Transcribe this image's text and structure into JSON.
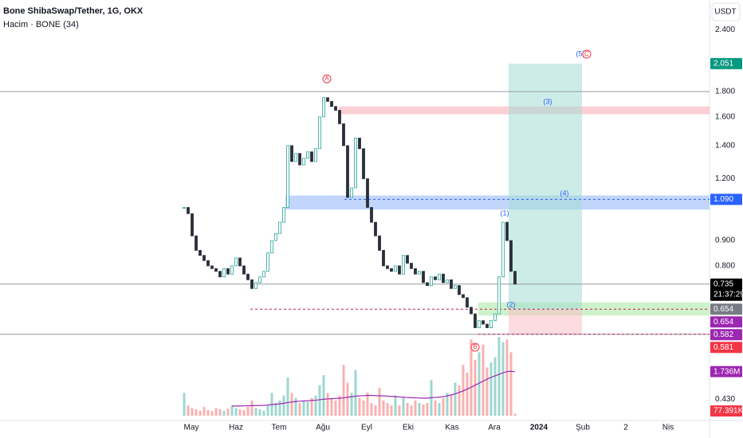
{
  "header": {
    "title": "Bone ShibaSwap/Tether, 1G, OKX",
    "indicator": "Hacim · BONE (34)",
    "currency": "USDT"
  },
  "chart_data": {
    "type": "candlestick",
    "log_scale": true,
    "ylim": [
      0.394,
      2.56
    ],
    "yticks": [
      {
        "value": 2.4,
        "label": "2.400"
      },
      {
        "value": 1.8,
        "label": "1.800"
      },
      {
        "value": 1.6,
        "label": "1.600"
      },
      {
        "value": 1.4,
        "label": "1.400"
      },
      {
        "value": 1.2,
        "label": "1.200"
      },
      {
        "value": 0.9,
        "label": "0.900"
      },
      {
        "value": 0.8,
        "label": "0.800"
      },
      {
        "value": 0.43,
        "label": "0.430"
      }
    ],
    "x_labels": [
      "May",
      "Haz",
      "Tem",
      "Ağu",
      "Eyl",
      "Eki",
      "Kas",
      "Ara",
      "2024",
      "Şub",
      "2",
      "Nis"
    ],
    "up_color": "#26a69a",
    "down_color": "#2a2e39",
    "values": [
      1.05,
      1.02,
      0.92,
      0.86,
      0.84,
      0.82,
      0.8,
      0.79,
      0.78,
      0.76,
      0.79,
      0.77,
      0.8,
      0.83,
      0.8,
      0.77,
      0.75,
      0.72,
      0.74,
      0.76,
      0.78,
      0.85,
      0.9,
      0.93,
      0.98,
      1.05,
      1.4,
      1.3,
      1.35,
      1.28,
      1.32,
      1.36,
      1.3,
      1.38,
      1.6,
      1.75,
      1.72,
      1.68,
      1.65,
      1.55,
      1.4,
      1.1,
      1.15,
      1.45,
      1.38,
      1.2,
      1.05,
      0.98,
      0.92,
      0.86,
      0.8,
      0.79,
      0.78,
      0.8,
      0.77,
      0.84,
      0.81,
      0.79,
      0.77,
      0.78,
      0.74,
      0.73,
      0.76,
      0.75,
      0.77,
      0.74,
      0.75,
      0.72,
      0.73,
      0.7,
      0.69,
      0.66,
      0.64,
      0.6,
      0.62,
      0.61,
      0.6,
      0.62,
      0.64,
      0.76,
      0.98,
      0.9,
      0.78,
      0.735
    ],
    "vlim": [
      0,
      3200000
    ],
    "volume": [
      900000,
      400000,
      300000,
      250000,
      200000,
      350000,
      220000,
      180000,
      300000,
      250000,
      200000,
      280000,
      400000,
      300000,
      250000,
      220000,
      350000,
      600000,
      300000,
      250000,
      200000,
      400000,
      900000,
      500000,
      600000,
      800000,
      1500000,
      900000,
      700000,
      500000,
      600000,
      550000,
      700000,
      800000,
      1200000,
      1600000,
      900000,
      700000,
      600000,
      800000,
      2000000,
      1300000,
      900000,
      1800000,
      700000,
      600000,
      900000,
      500000,
      400000,
      1100000,
      600000,
      500000,
      400000,
      800000,
      400000,
      700000,
      500000,
      400000,
      600000,
      500000,
      450000,
      500000,
      1400000,
      600000,
      500000,
      700000,
      900000,
      800000,
      1300000,
      1200000,
      2000000,
      1700000,
      3000000,
      2200000,
      2500000,
      2800000,
      1900000,
      2100000,
      2300000,
      3100000,
      2900000,
      3000000,
      2500000,
      77391
    ],
    "volume_ma": [
      null,
      null,
      null,
      null,
      null,
      null,
      null,
      null,
      null,
      null,
      null,
      null,
      380000,
      380000,
      380000,
      390000,
      390000,
      400000,
      400000,
      400000,
      410000,
      420000,
      440000,
      450000,
      470000,
      490000,
      520000,
      540000,
      560000,
      570000,
      580000,
      590000,
      600000,
      610000,
      630000,
      650000,
      660000,
      670000,
      680000,
      690000,
      700000,
      730000,
      750000,
      770000,
      780000,
      790000,
      800000,
      800000,
      790000,
      780000,
      780000,
      770000,
      760000,
      750000,
      740000,
      730000,
      720000,
      710000,
      700000,
      700000,
      690000,
      690000,
      710000,
      720000,
      730000,
      750000,
      780000,
      820000,
      860000,
      920000,
      980000,
      1050000,
      1120000,
      1200000,
      1280000,
      1360000,
      1440000,
      1510000,
      1570000,
      1630000,
      1690000,
      1740000,
      1750000,
      1736000
    ],
    "zones": [
      {
        "low": 1.62,
        "high": 1.68,
        "color": "#f7a9b0"
      },
      {
        "low": 1.04,
        "high": 1.11,
        "color": "#90b4f9"
      },
      {
        "low": 0.635,
        "high": 0.675,
        "color": "#a6e8a0"
      },
      {
        "low": 0.654,
        "high": 2.051,
        "color": "#a4ddd3"
      },
      {
        "low": 0.582,
        "high": 0.654,
        "color": "#f9c0c6"
      }
    ],
    "lines": [
      {
        "value": 1.8,
        "color": "#9598a1",
        "dash": false
      },
      {
        "value": 0.735,
        "color": "#9598a1",
        "dash": false
      },
      {
        "value": 0.582,
        "color": "#9598a1",
        "dash": false
      },
      {
        "value": 1.09,
        "color": "#2962ff",
        "dash": true
      },
      {
        "value": 0.654,
        "color": "#c2185b",
        "dash": true
      }
    ],
    "price_tags": [
      {
        "value": 2.051,
        "label": "2.051",
        "color": "#089981"
      },
      {
        "value": 1.09,
        "label": "1.090",
        "color": "#2962ff"
      },
      {
        "value": 0.735,
        "label": "0.735",
        "color": "#000000",
        "countdown": "21:37:29"
      },
      {
        "value": 0.654,
        "label": "0.654",
        "color": "#787b86"
      },
      {
        "value": 0.654,
        "label": "0.654",
        "color": "#9c27b0"
      },
      {
        "value": 0.582,
        "label": "0.582",
        "color": "#9c27b0"
      },
      {
        "value": 0.581,
        "label": "0.581",
        "color": "#f23645"
      }
    ],
    "volume_tags": [
      {
        "value": 1736000,
        "label": "1.736M",
        "color": "#9c27b0"
      },
      {
        "value": 77391,
        "label": "77.391K",
        "color": "#f23645"
      }
    ],
    "waves": [
      {
        "label": "A",
        "circled": true
      },
      {
        "label": "B",
        "circled": true
      },
      {
        "label": "(5)",
        "circled": false
      },
      {
        "label": "C",
        "circled": true
      },
      {
        "label": "(3)",
        "circled": false
      },
      {
        "label": "(4)",
        "circled": false
      },
      {
        "label": "(1)",
        "circled": false
      },
      {
        "label": "(2)",
        "circled": false
      }
    ]
  }
}
